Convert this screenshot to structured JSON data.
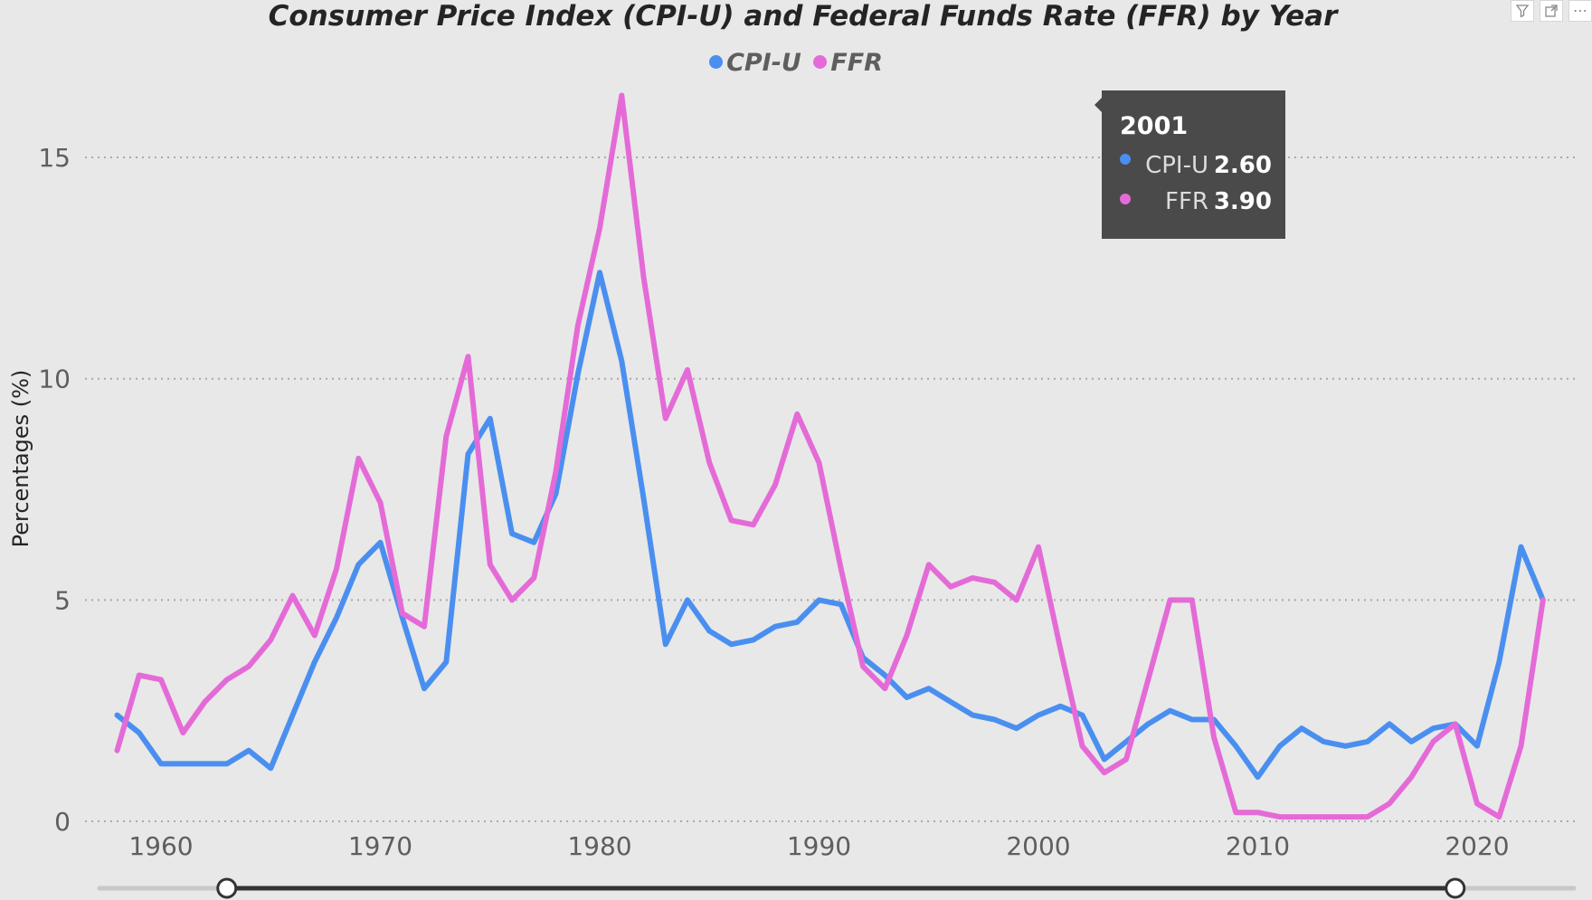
{
  "chart_data": {
    "type": "line",
    "title": "Consumer Price Index (CPI-U) and Federal Funds Rate (FFR) by Year",
    "xlabel": "",
    "ylabel": "Percentages (%)",
    "x": [
      1958,
      1959,
      1960,
      1961,
      1962,
      1963,
      1964,
      1965,
      1966,
      1967,
      1968,
      1969,
      1970,
      1971,
      1972,
      1973,
      1974,
      1975,
      1976,
      1977,
      1978,
      1979,
      1980,
      1981,
      1982,
      1983,
      1984,
      1985,
      1986,
      1987,
      1988,
      1989,
      1990,
      1991,
      1992,
      1993,
      1994,
      1995,
      1996,
      1997,
      1998,
      1999,
      2000,
      2001,
      2002,
      2003,
      2004,
      2005,
      2006,
      2007,
      2008,
      2009,
      2010,
      2011,
      2012,
      2013,
      2014,
      2015,
      2016,
      2017,
      2018,
      2019,
      2020,
      2021,
      2022,
      2023
    ],
    "xlim": [
      1954,
      2038
    ],
    "ylim": [
      0,
      18
    ],
    "xticks": [
      "1960",
      "1970",
      "1980",
      "1990",
      "2000",
      "2010",
      "2020"
    ],
    "yticks": [
      "0",
      "5",
      "10",
      "15"
    ],
    "grid": true,
    "legend_position": "top-center",
    "series": [
      {
        "name": "CPI-U",
        "color": "#4a8ff0",
        "values": [
          2.4,
          2.0,
          1.3,
          1.3,
          1.3,
          1.3,
          1.6,
          1.2,
          2.4,
          3.6,
          4.6,
          5.8,
          6.3,
          4.6,
          3.0,
          3.6,
          8.3,
          9.1,
          6.5,
          6.3,
          7.4,
          10.1,
          12.4,
          10.4,
          7.3,
          4.0,
          5.0,
          4.3,
          4.0,
          4.1,
          4.4,
          4.5,
          5.0,
          4.9,
          3.7,
          3.3,
          2.8,
          3.0,
          2.7,
          2.4,
          2.3,
          2.1,
          2.4,
          2.6,
          2.4,
          1.4,
          1.8,
          2.2,
          2.5,
          2.3,
          2.3,
          1.7,
          1.0,
          1.7,
          2.1,
          1.8,
          1.7,
          1.8,
          2.2,
          1.8,
          2.1,
          2.2,
          1.7,
          3.6,
          6.2,
          5.0
        ]
      },
      {
        "name": "FFR",
        "color": "#e46bd7",
        "values": [
          1.6,
          3.3,
          3.2,
          2.0,
          2.7,
          3.2,
          3.5,
          4.1,
          5.1,
          4.2,
          5.7,
          8.2,
          7.2,
          4.7,
          4.4,
          8.7,
          10.5,
          5.8,
          5.0,
          5.5,
          7.9,
          11.2,
          13.4,
          16.4,
          12.3,
          9.1,
          10.2,
          8.1,
          6.8,
          6.7,
          7.6,
          9.2,
          8.1,
          5.7,
          3.5,
          3.0,
          4.2,
          5.8,
          5.3,
          5.5,
          5.4,
          5.0,
          6.2,
          3.9,
          1.7,
          1.1,
          1.4,
          3.2,
          5.0,
          5.0,
          1.9,
          0.2,
          0.2,
          0.1,
          0.1,
          0.1,
          0.1,
          0.1,
          0.4,
          1.0,
          1.8,
          2.2,
          0.4,
          0.1,
          1.7,
          5.0
        ]
      }
    ]
  },
  "tooltip": {
    "year": "2001",
    "rows": [
      {
        "name": "CPI-U",
        "value": "2.60",
        "color": "#4a8ff0"
      },
      {
        "name": "FFR",
        "value": "3.90",
        "color": "#e46bd7"
      }
    ]
  },
  "slider": {
    "range": [
      1963,
      2019
    ]
  },
  "visual_header": {
    "icons": [
      "filter-icon",
      "focus-mode-icon",
      "more-options-icon"
    ]
  }
}
